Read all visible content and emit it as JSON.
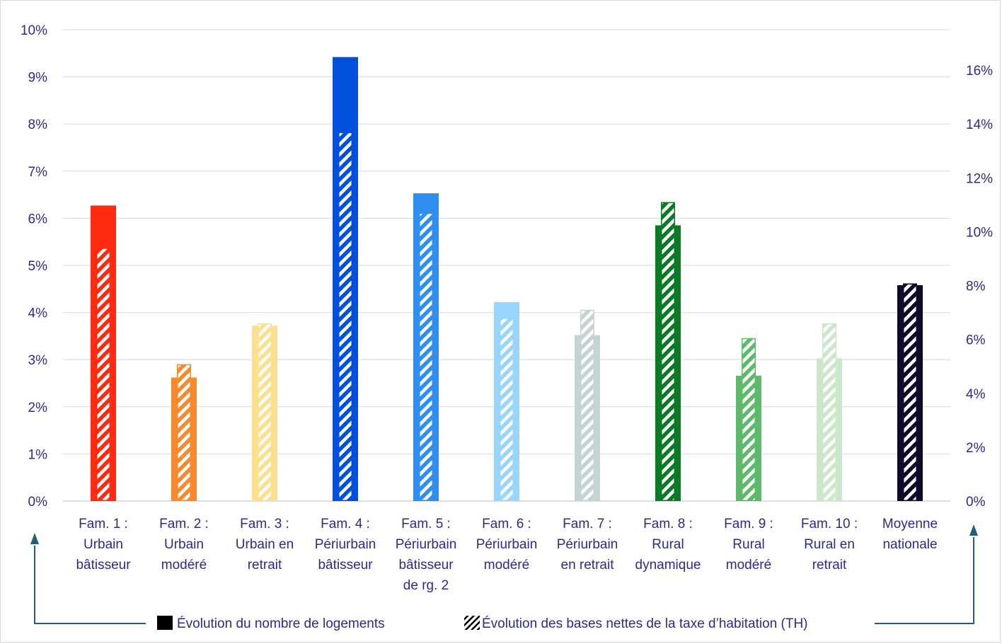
{
  "chart_data": {
    "type": "bar",
    "categories": [
      [
        "Fam. 1 :",
        "Urbain",
        "bâtisseur"
      ],
      [
        "Fam. 2 :",
        "Urbain",
        "modéré"
      ],
      [
        "Fam. 3 :",
        "Urbain en",
        "retrait"
      ],
      [
        "Fam. 4 :",
        "Périurbain",
        "bâtisseur"
      ],
      [
        "Fam. 5 :",
        "Périurbain",
        "bâtisseur",
        "de rg. 2"
      ],
      [
        "Fam. 6 :",
        "Périurbain",
        "modéré"
      ],
      [
        "Fam. 7 :",
        "Périurbain",
        "en retrait"
      ],
      [
        "Fam. 8 :",
        "Rural",
        "dynamique"
      ],
      [
        "Fam. 9 :",
        "Rural",
        "modéré"
      ],
      [
        "Fam. 10 :",
        "Rural en",
        "retrait"
      ],
      [
        "Moyenne",
        "nationale"
      ]
    ],
    "colors": [
      "#ff2a0f",
      "#f7892e",
      "#fbe08f",
      "#0050dc",
      "#2f8ff0",
      "#99d6ff",
      "#c3d4d2",
      "#0b7a24",
      "#5dba6a",
      "#cbe8cb",
      "#0f0a2a"
    ],
    "series": [
      {
        "name": "Évolution du nombre de logements",
        "axis": "left",
        "values": [
          6.27,
          2.62,
          3.72,
          9.42,
          6.53,
          4.22,
          3.52,
          5.85,
          2.66,
          3.03,
          4.58
        ]
      },
      {
        "name": "Évolution des bases nettes de la taxe d’habitation (TH)",
        "axis": "right",
        "values": [
          9.4,
          5.08,
          6.6,
          13.7,
          10.7,
          6.8,
          7.1,
          11.1,
          6.05,
          6.6,
          8.08
        ]
      }
    ],
    "y_left": {
      "ylim": [
        0,
        10
      ],
      "ticks": [
        "0%",
        "1%",
        "2%",
        "3%",
        "4%",
        "5%",
        "6%",
        "7%",
        "8%",
        "9%",
        "10%"
      ]
    },
    "y_right": {
      "ylim": [
        0,
        17.5
      ],
      "ticks": [
        "0%",
        "2%",
        "4%",
        "6%",
        "8%",
        "10%",
        "12%",
        "14%",
        "16%"
      ]
    },
    "grid": true,
    "legend_position": "bottom",
    "tick_color": "#2e2a8a",
    "arrow_color": "#1f5f7a"
  }
}
